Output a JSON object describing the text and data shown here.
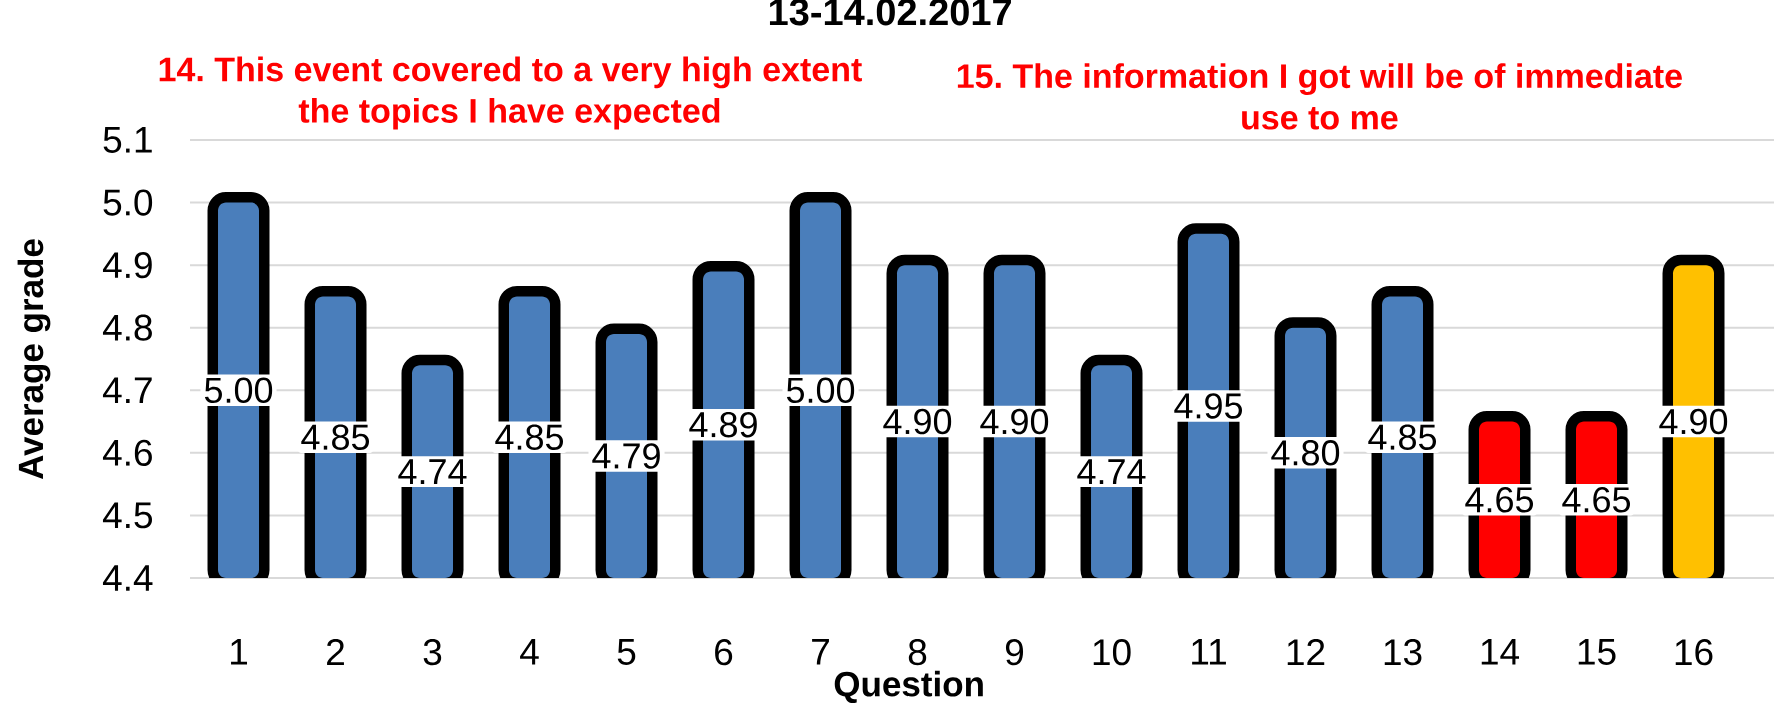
{
  "chart_data": {
    "type": "bar",
    "title": "13-14.02.2017",
    "xlabel": "Question",
    "ylabel": "Average grade",
    "categories": [
      "1",
      "2",
      "3",
      "4",
      "5",
      "6",
      "7",
      "8",
      "9",
      "10",
      "11",
      "12",
      "13",
      "14",
      "15",
      "16"
    ],
    "values": [
      5.0,
      4.85,
      4.74,
      4.85,
      4.79,
      4.89,
      5.0,
      4.9,
      4.9,
      4.74,
      4.95,
      4.8,
      4.85,
      4.65,
      4.65,
      4.9
    ],
    "value_labels": [
      "5.00",
      "4.85",
      "4.74",
      "4.85",
      "4.79",
      "4.89",
      "5.00",
      "4.90",
      "4.90",
      "4.74",
      "4.95",
      "4.80",
      "4.85",
      "4.65",
      "4.65",
      "4.90"
    ],
    "colors": [
      "#4a7ebb",
      "#4a7ebb",
      "#4a7ebb",
      "#4a7ebb",
      "#4a7ebb",
      "#4a7ebb",
      "#4a7ebb",
      "#4a7ebb",
      "#4a7ebb",
      "#4a7ebb",
      "#4a7ebb",
      "#4a7ebb",
      "#4a7ebb",
      "#ff0000",
      "#ff0000",
      "#ffc000"
    ],
    "ylim": [
      4.4,
      5.1
    ],
    "yticks": [
      4.4,
      4.5,
      4.6,
      4.7,
      4.8,
      4.9,
      {
        "value": 5.0,
        "label": "5.0"
      },
      5.1
    ],
    "grid": "y",
    "annotations": [
      "14. This event covered to a very high extent the topics I have expected",
      "15. The information I got will be of immediate use to me"
    ]
  }
}
